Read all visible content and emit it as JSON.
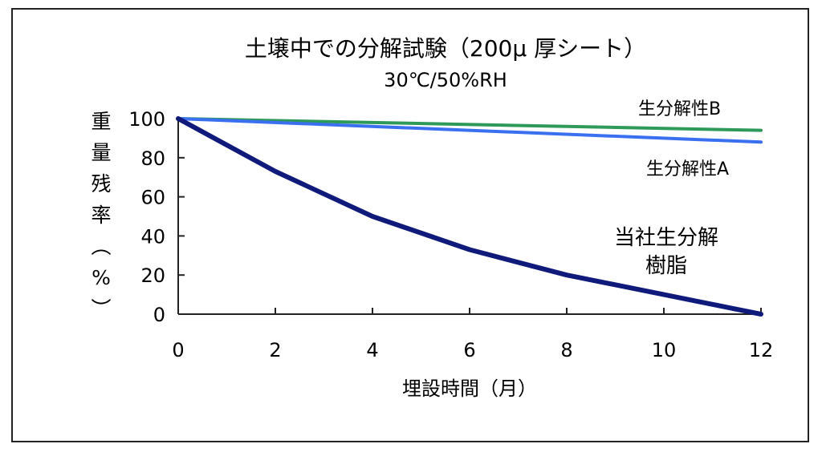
{
  "chart_data": {
    "type": "line",
    "title": "土壌中での分解試験（200μ 厚シート）",
    "subtitle": "30℃/50%RH",
    "xlabel": "埋設時間（月）",
    "ylabel": "重量残率（%）",
    "xlim": [
      0,
      12
    ],
    "ylim": [
      0,
      100
    ],
    "x_ticks": [
      "0",
      "2",
      "4",
      "6",
      "8",
      "10",
      "12"
    ],
    "y_ticks": [
      "0",
      "20",
      "40",
      "60",
      "80",
      "100"
    ],
    "legend": "inline labels",
    "grid": false,
    "series": [
      {
        "name": "生分解性B",
        "color": "#2e9a5a",
        "x": [
          0,
          12
        ],
        "y": [
          100,
          94
        ]
      },
      {
        "name": "生分解性A",
        "color": "#3a6ff0",
        "x": [
          0,
          12
        ],
        "y": [
          100,
          88
        ]
      },
      {
        "name": "当社生分解樹脂",
        "name_lines": [
          "当社生分解",
          "樹脂"
        ],
        "color": "#0f1a7a",
        "x": [
          0,
          2,
          4,
          6,
          8,
          10,
          12
        ],
        "y": [
          100,
          73,
          50,
          33,
          20,
          10,
          0
        ]
      }
    ]
  }
}
